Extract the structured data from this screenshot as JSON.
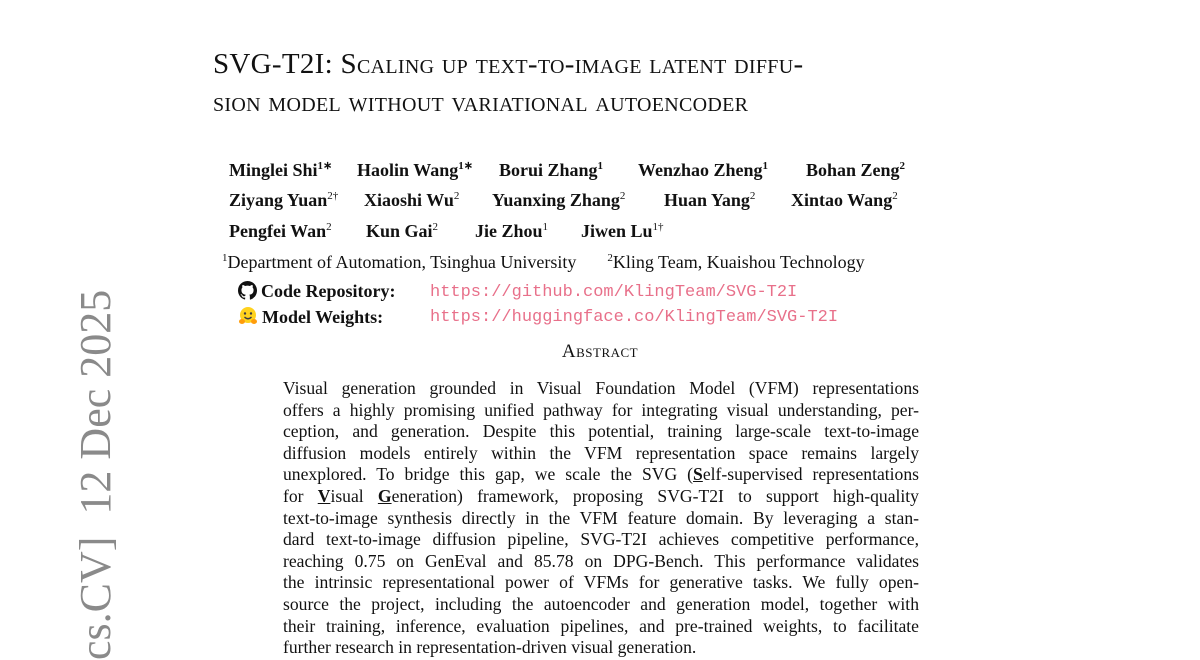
{
  "title": {
    "line1": "SVG-T2I: Scaling up text-to-image latent diffu-",
    "line2": "sion model without variational autoencoder"
  },
  "authors": [
    [
      {
        "name": "Minglei Shi",
        "sup": "1∗"
      },
      {
        "name": "Haolin Wang",
        "sup": "1∗"
      },
      {
        "name": "Borui Zhang",
        "sup": "1"
      },
      {
        "name": "Wenzhao Zheng",
        "sup": "1"
      },
      {
        "name": "Bohan Zeng",
        "sup": "2"
      }
    ],
    [
      {
        "name": "Ziyang Yuan",
        "sup": "2†"
      },
      {
        "name": "Xiaoshi Wu",
        "sup": "2"
      },
      {
        "name": "Yuanxing Zhang",
        "sup": "2"
      },
      {
        "name": "Huan Yang",
        "sup": "2"
      },
      {
        "name": "Xintao Wang",
        "sup": "2"
      }
    ],
    [
      {
        "name": "Pengfei Wan",
        "sup": "2"
      },
      {
        "name": "Kun Gai",
        "sup": "2"
      },
      {
        "name": "Jie Zhou",
        "sup": "1"
      },
      {
        "name": "Jiwen Lu",
        "sup": "1†"
      }
    ]
  ],
  "affiliations": [
    {
      "sup": "1",
      "text": "Department of Automation, Tsinghua University"
    },
    {
      "sup": "2",
      "text": "Kling Team, Kuaishou Technology"
    }
  ],
  "links": [
    {
      "icon": "github-icon",
      "label": "Code Repository:",
      "url": "https://github.com/KlingTeam/SVG-T2I"
    },
    {
      "icon": "hugging-face-icon",
      "label": "Model Weights:",
      "url": "https://huggingface.co/KlingTeam/SVG-T2I"
    }
  ],
  "link_color": "#e8708a",
  "abstract": {
    "heading": "Abstract",
    "lines": [
      "Visual generation grounded in Visual Foundation Model (VFM) representations",
      "offers a highly promising unified pathway for integrating visual understanding, per-",
      "ception, and generation. Despite this potential, training large-scale text-to-image",
      "diffusion models entirely within the VFM representation space remains largely",
      [
        "unexplored. To bridge this gap, we scale the SVG (",
        "S",
        "elf-supervised representations"
      ],
      [
        "for ",
        "V",
        "isual ",
        "G",
        "eneration) framework, proposing SVG-T2I to support high-quality"
      ],
      "text-to-image synthesis directly in the VFM feature domain. By leveraging a stan-",
      "dard text-to-image diffusion pipeline, SVG-T2I achieves competitive performance,",
      "reaching 0.75 on GenEval and 85.78 on DPG-Bench. This performance validates",
      "the intrinsic representational power of VFMs for generative tasks. We fully open-",
      "source the project, including the autoencoder and generation model, together with",
      "their training, inference, evaluation pipelines, and pre-trained weights, to facilitate",
      "further research in representation-driven visual generation."
    ]
  },
  "arxiv_stamp": "cs.CV]  12 Dec 2025"
}
